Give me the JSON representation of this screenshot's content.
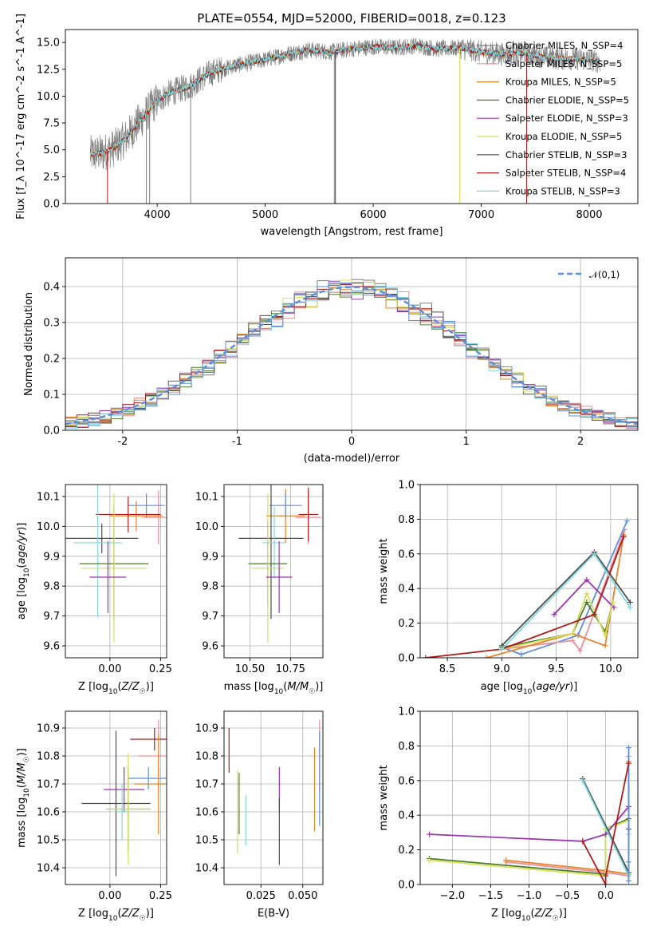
{
  "chart_data": [
    {
      "id": "spectrum",
      "type": "line",
      "title": "PLATE=0554, MJD=52000, FIBERID=0018, z=0.123",
      "xlabel": "wavelength [Angstrom, rest frame]",
      "ylabel": "Flux [f_λ 10^-17 erg cm^-2 s^-1 A^-1]",
      "xlim": [
        3150,
        8450
      ],
      "ylim": [
        0,
        16.2
      ],
      "xticks": [
        4000,
        5000,
        6000,
        7000,
        8000
      ],
      "yticks": [
        0.0,
        2.5,
        5.0,
        7.5,
        10.0,
        12.5,
        15.0
      ],
      "grid": false,
      "legend_position": "top-right",
      "series": [
        {
          "name": "Chabrier MILES, N_SSP=4",
          "color": "#7f7f7f"
        },
        {
          "name": "Salpeter MILES, N_SSP=5",
          "color": "#e8909c"
        },
        {
          "name": "Kroupa MILES, N_SSP=5",
          "color": "#e6842a"
        },
        {
          "name": "Chabrier ELODIE, N_SSP=5",
          "color": "#4a7c2a"
        },
        {
          "name": "Salpeter ELODIE, N_SSP=3",
          "color": "#9b35b0"
        },
        {
          "name": "Kroupa ELODIE, N_SSP=5",
          "color": "#d8e05a"
        },
        {
          "name": "Chabrier STELIB, N_SSP=3",
          "color": "#4d4d4d"
        },
        {
          "name": "Salpeter STELIB, N_SSP=4",
          "color": "#b01c1c"
        },
        {
          "name": "Kroupa STELIB, N_SSP=3",
          "color": "#7fd8e0"
        }
      ],
      "continuum": {
        "x": [
          3380,
          3500,
          3600,
          3700,
          3800,
          3900,
          4000,
          4100,
          4200,
          4300,
          4400,
          4500,
          4600,
          4700,
          4800,
          4900,
          5000,
          5200,
          5400,
          5600,
          5800,
          6000,
          6200,
          6400,
          6600,
          6800,
          7000,
          7200,
          7400,
          7600,
          7800,
          8000,
          8100
        ],
        "y": [
          4.6,
          4.7,
          5.2,
          6.0,
          7.2,
          8.4,
          9.6,
          10.2,
          10.6,
          10.9,
          11.6,
          12.2,
          12.5,
          12.8,
          13.0,
          13.2,
          13.4,
          13.9,
          14.3,
          14.1,
          14.4,
          14.6,
          14.5,
          14.7,
          14.4,
          14.5,
          14.1,
          13.9,
          14.0,
          13.6,
          13.5,
          13.4,
          13.2
        ]
      },
      "dropouts": [
        {
          "x": 3540,
          "color": "#b01c1c"
        },
        {
          "x": 3930,
          "color": "#7f7f7f"
        },
        {
          "x": 4310,
          "color": "#7f7f7f"
        },
        {
          "x": 5640,
          "color": "#7f7f7f"
        },
        {
          "x": 5650,
          "color": "#4d4d4d"
        },
        {
          "x": 6800,
          "color": "#d8e05a"
        },
        {
          "x": 7420,
          "color": "#b01c1c"
        },
        {
          "x": 3900,
          "color": "#7f7f7f"
        }
      ]
    },
    {
      "id": "residuals",
      "type": "area",
      "xlabel": "(data-model)/error",
      "ylabel": "Normed distribution",
      "xlim": [
        -2.5,
        2.5
      ],
      "ylim": [
        0,
        0.48
      ],
      "xticks": [
        -2,
        -1,
        0,
        1,
        2
      ],
      "yticks": [
        0.0,
        0.1,
        0.2,
        0.3,
        0.4
      ],
      "grid": true,
      "legend_position": "top-right",
      "legend": [
        {
          "name": "𝒩(0,1)",
          "color": "#5f8fd8"
        }
      ],
      "bin_width": 0.1,
      "histogram_colors": [
        "#7f7f7f",
        "#e8909c",
        "#e6842a",
        "#4a7c2a",
        "#9b35b0",
        "#d8e05a",
        "#4d4d4d",
        "#b01c1c",
        "#7fd8e0",
        "#5f8fd8"
      ]
    },
    {
      "id": "age_vs_Z",
      "type": "scatter",
      "xlabel": "Z [log10(Z/Z☉)]",
      "ylabel": "age  [log10(age/yr)]",
      "xlim": [
        -0.22,
        0.28
      ],
      "ylim": [
        9.56,
        10.14
      ],
      "xticks": [
        0.0,
        0.25
      ],
      "xticklabels": [
        "0.00",
        "0.25"
      ],
      "yticks": [
        9.6,
        9.7,
        9.8,
        9.9,
        10.0,
        10.1
      ],
      "grid": true,
      "crosses": [
        {
          "x": 0.24,
          "y": 10.03,
          "xerr": 0.08,
          "yerr": 0.09,
          "color": "#e8909c"
        },
        {
          "x": 0.13,
          "y": 10.035,
          "xerr": 0.13,
          "yerr": 0.05,
          "color": "#e6842a"
        },
        {
          "x": 0.18,
          "y": 10.07,
          "xerr": 0.09,
          "yerr": 0.04,
          "color": "#5f8fd8"
        },
        {
          "x": 0.09,
          "y": 10.04,
          "xerr": 0.16,
          "yerr": 0.06,
          "color": "#b01c1c"
        },
        {
          "x": -0.04,
          "y": 9.96,
          "xerr": 0.18,
          "yerr": 0.05,
          "color": "#4d4d4d"
        },
        {
          "x": -0.06,
          "y": 9.945,
          "xerr": 0.12,
          "yerr": 0.25,
          "color": "#7fd8e0"
        },
        {
          "x": 0.02,
          "y": 9.875,
          "xerr": 0.17,
          "yerr": 0.19,
          "color": "#4a7c2a"
        },
        {
          "x": 0.02,
          "y": 9.86,
          "xerr": 0.16,
          "yerr": 0.25,
          "color": "#d8e05a"
        },
        {
          "x": -0.01,
          "y": 9.83,
          "xerr": 0.09,
          "yerr": 0.12,
          "color": "#9b35b0"
        }
      ]
    },
    {
      "id": "age_vs_mass",
      "type": "scatter",
      "xlabel": "mass [log10(M/M☉)]",
      "ylabel": "",
      "xlim": [
        10.34,
        10.95
      ],
      "ylim": [
        9.56,
        10.14
      ],
      "xticks": [
        10.5,
        10.75
      ],
      "xticklabels": [
        "10.50",
        "10.75"
      ],
      "yticks": [
        9.6,
        9.7,
        9.8,
        9.9,
        10.0,
        10.1
      ],
      "grid": true,
      "crosses": [
        {
          "x": 10.86,
          "y": 10.03,
          "xerr": 0.08,
          "yerr": 0.09,
          "color": "#e8909c"
        },
        {
          "x": 10.72,
          "y": 10.035,
          "xerr": 0.12,
          "yerr": 0.09,
          "color": "#e6842a"
        },
        {
          "x": 10.72,
          "y": 10.07,
          "xerr": 0.1,
          "yerr": 0.04,
          "color": "#5f8fd8"
        },
        {
          "x": 10.86,
          "y": 10.04,
          "xerr": 0.06,
          "yerr": 0.09,
          "color": "#b01c1c"
        },
        {
          "x": 10.63,
          "y": 9.96,
          "xerr": 0.2,
          "yerr": 0.27,
          "color": "#4d4d4d"
        },
        {
          "x": 10.65,
          "y": 9.945,
          "xerr": 0.07,
          "yerr": 0.12,
          "color": "#7fd8e0"
        },
        {
          "x": 10.61,
          "y": 9.875,
          "xerr": 0.12,
          "yerr": 0.14,
          "color": "#4a7c2a"
        },
        {
          "x": 10.61,
          "y": 9.86,
          "xerr": 0.1,
          "yerr": 0.25,
          "color": "#d8e05a"
        },
        {
          "x": 10.68,
          "y": 9.83,
          "xerr": 0.08,
          "yerr": 0.12,
          "color": "#9b35b0"
        }
      ]
    },
    {
      "id": "weight_vs_age",
      "type": "line",
      "xlabel": "age  [log10(age/yr)]",
      "ylabel": "mass weight",
      "xlim": [
        8.25,
        10.25
      ],
      "ylim": [
        0,
        1
      ],
      "xticks": [
        8.5,
        9.0,
        9.5,
        10.0
      ],
      "xticklabels": [
        "8.5",
        "9.0",
        "9.5",
        "10.0"
      ],
      "yticks": [
        0.0,
        0.2,
        0.4,
        0.6,
        0.8,
        1.0
      ],
      "grid": true,
      "series": [
        {
          "color": "#5f8fd8",
          "x": [
            9.0,
            9.18,
            9.7,
            10.15
          ],
          "y": [
            0.06,
            0.02,
            0.13,
            0.79
          ]
        },
        {
          "color": "#e8909c",
          "x": [
            9.0,
            9.65,
            9.72,
            10.13
          ],
          "y": [
            0.05,
            0.1,
            0.04,
            0.74
          ]
        },
        {
          "color": "#e6842a",
          "x": [
            8.86,
            9.65,
            9.95,
            10.12
          ],
          "y": [
            0.0,
            0.14,
            0.07,
            0.71
          ]
        },
        {
          "color": "#4a7c2a",
          "x": [
            9.0,
            9.65,
            9.78,
            9.95,
            10.02
          ],
          "y": [
            0.06,
            0.14,
            0.32,
            0.15,
            0.32
          ]
        },
        {
          "color": "#9b35b0",
          "x": [
            9.48,
            9.78,
            10.03
          ],
          "y": [
            0.25,
            0.45,
            0.29
          ]
        },
        {
          "color": "#d8e05a",
          "x": [
            9.0,
            9.65,
            9.78,
            9.95,
            10.02
          ],
          "y": [
            0.05,
            0.14,
            0.37,
            0.13,
            0.32
          ]
        },
        {
          "color": "#4d4d4d",
          "x": [
            9.0,
            9.85,
            10.18
          ],
          "y": [
            0.07,
            0.61,
            0.32
          ]
        },
        {
          "color": "#b01c1c",
          "x": [
            8.3,
            9.0,
            9.85,
            10.12
          ],
          "y": [
            0.0,
            0.05,
            0.25,
            0.7
          ]
        },
        {
          "color": "#7fd8e0",
          "x": [
            9.0,
            9.85,
            10.18
          ],
          "y": [
            0.05,
            0.6,
            0.29
          ]
        }
      ]
    },
    {
      "id": "mass_vs_Z",
      "type": "scatter",
      "xlabel": "Z [log10(Z/Z☉)]",
      "ylabel": "mass [log10(M/M☉)]",
      "xlim": [
        -0.22,
        0.28
      ],
      "ylim": [
        10.34,
        10.96
      ],
      "xticks": [
        0.0,
        0.25
      ],
      "xticklabels": [
        "0.00",
        "0.25"
      ],
      "yticks": [
        10.4,
        10.5,
        10.6,
        10.7,
        10.8,
        10.9
      ],
      "grid": true,
      "crosses": [
        {
          "x": 0.22,
          "y": 10.86,
          "xerr": 0.12,
          "yerr": 0.04,
          "color": "#b01c1c"
        },
        {
          "x": 0.24,
          "y": 10.8,
          "xerr": 0.1,
          "yerr": 0.13,
          "color": "#e8909c"
        },
        {
          "x": 0.19,
          "y": 10.72,
          "xerr": 0.1,
          "yerr": 0.04,
          "color": "#5f8fd8"
        },
        {
          "x": 0.24,
          "y": 10.7,
          "xerr": 0.12,
          "yerr": 0.18,
          "color": "#e6842a"
        },
        {
          "x": 0.07,
          "y": 10.68,
          "xerr": 0.1,
          "yerr": 0.08,
          "color": "#9b35b0"
        },
        {
          "x": 0.03,
          "y": 10.63,
          "xerr": 0.17,
          "yerr": 0.26,
          "color": "#4d4d4d"
        },
        {
          "x": 0.09,
          "y": 10.61,
          "xerr": 0.11,
          "yerr": 0.15,
          "color": "#4a7c2a"
        },
        {
          "x": 0.09,
          "y": 10.61,
          "xerr": 0.11,
          "yerr": 0.2,
          "color": "#d8e05a"
        },
        {
          "x": 0.06,
          "y": 10.6,
          "xerr": 0.03,
          "yerr": 0.1,
          "color": "#7fd8e0"
        }
      ]
    },
    {
      "id": "mass_vs_EBV",
      "type": "scatter",
      "xlabel": "E(B-V)",
      "ylabel": "",
      "xlim": [
        0.003,
        0.062
      ],
      "ylim": [
        10.34,
        10.96
      ],
      "xticks": [
        0.025,
        0.05
      ],
      "xticklabels": [
        "0.025",
        "0.050"
      ],
      "yticks": [
        10.4,
        10.5,
        10.6,
        10.7,
        10.8,
        10.9
      ],
      "grid": true,
      "crosses": [
        {
          "x": 0.006,
          "y": 10.82,
          "xerr": 0,
          "yerr": 0.08,
          "color": "#b01c1c"
        },
        {
          "x": 0.06,
          "y": 10.8,
          "xerr": 0,
          "yerr": 0.13,
          "color": "#e8909c"
        },
        {
          "x": 0.06,
          "y": 10.72,
          "xerr": 0,
          "yerr": 0.17,
          "color": "#5f8fd8"
        },
        {
          "x": 0.057,
          "y": 10.68,
          "xerr": 0,
          "yerr": 0.15,
          "color": "#e6842a"
        },
        {
          "x": 0.036,
          "y": 10.68,
          "xerr": 0,
          "yerr": 0.08,
          "color": "#9b35b0"
        },
        {
          "x": 0.036,
          "y": 10.53,
          "xerr": 0,
          "yerr": 0.12,
          "color": "#4d4d4d"
        },
        {
          "x": 0.012,
          "y": 10.63,
          "xerr": 0,
          "yerr": 0.11,
          "color": "#4a7c2a"
        },
        {
          "x": 0.011,
          "y": 10.6,
          "xerr": 0,
          "yerr": 0.15,
          "color": "#d8e05a"
        },
        {
          "x": 0.016,
          "y": 10.57,
          "xerr": 0,
          "yerr": 0.09,
          "color": "#7fd8e0"
        }
      ]
    },
    {
      "id": "weight_vs_Z",
      "type": "line",
      "xlabel": "Z [log10(Z/Z☉)]",
      "ylabel": "mass weight",
      "xlim": [
        -2.42,
        0.42
      ],
      "ylim": [
        0,
        1
      ],
      "xticks": [
        -2.0,
        -1.5,
        -1.0,
        -0.5,
        0.0
      ],
      "xticklabels": [
        "−2.0",
        "−1.5",
        "−1.0",
        "−0.5",
        "0.0"
      ],
      "yticks": [
        0.0,
        0.2,
        0.4,
        0.6,
        0.8,
        1.0
      ],
      "grid": true,
      "series": [
        {
          "color": "#e8909c",
          "x": [
            -1.3,
            0.0,
            0.3,
            0.3
          ],
          "y": [
            0.13,
            0.07,
            0.05,
            0.74
          ]
        },
        {
          "color": "#e6842a",
          "x": [
            -1.3,
            0.0,
            0.3,
            0.3
          ],
          "y": [
            0.14,
            0.08,
            0.06,
            0.71
          ]
        },
        {
          "color": "#4a7c2a",
          "x": [
            -2.3,
            0.0,
            0.0,
            0.3,
            0.3
          ],
          "y": [
            0.15,
            0.06,
            0.32,
            0.38,
            0.06
          ]
        },
        {
          "color": "#d8e05a",
          "x": [
            -2.3,
            0.0,
            0.0,
            0.3,
            0.3
          ],
          "y": [
            0.14,
            0.05,
            0.32,
            0.37,
            0.06
          ]
        },
        {
          "color": "#9b35b0",
          "x": [
            -2.3,
            -0.3,
            0.0,
            0.3
          ],
          "y": [
            0.29,
            0.25,
            0.29,
            0.45
          ]
        },
        {
          "color": "#4d4d4d",
          "x": [
            -0.3,
            0.3,
            0.3
          ],
          "y": [
            0.61,
            0.07,
            0.32
          ]
        },
        {
          "color": "#7fd8e0",
          "x": [
            -0.3,
            0.3,
            0.3
          ],
          "y": [
            0.6,
            0.05,
            0.29
          ]
        },
        {
          "color": "#5f8fd8",
          "x": [
            0.3,
            0.3,
            0.3
          ],
          "y": [
            0.02,
            0.13,
            0.79
          ]
        },
        {
          "color": "#b01c1c",
          "x": [
            -0.3,
            0.0,
            0.0,
            0.3
          ],
          "y": [
            0.25,
            0.0,
            0.05,
            0.7
          ]
        }
      ]
    }
  ]
}
